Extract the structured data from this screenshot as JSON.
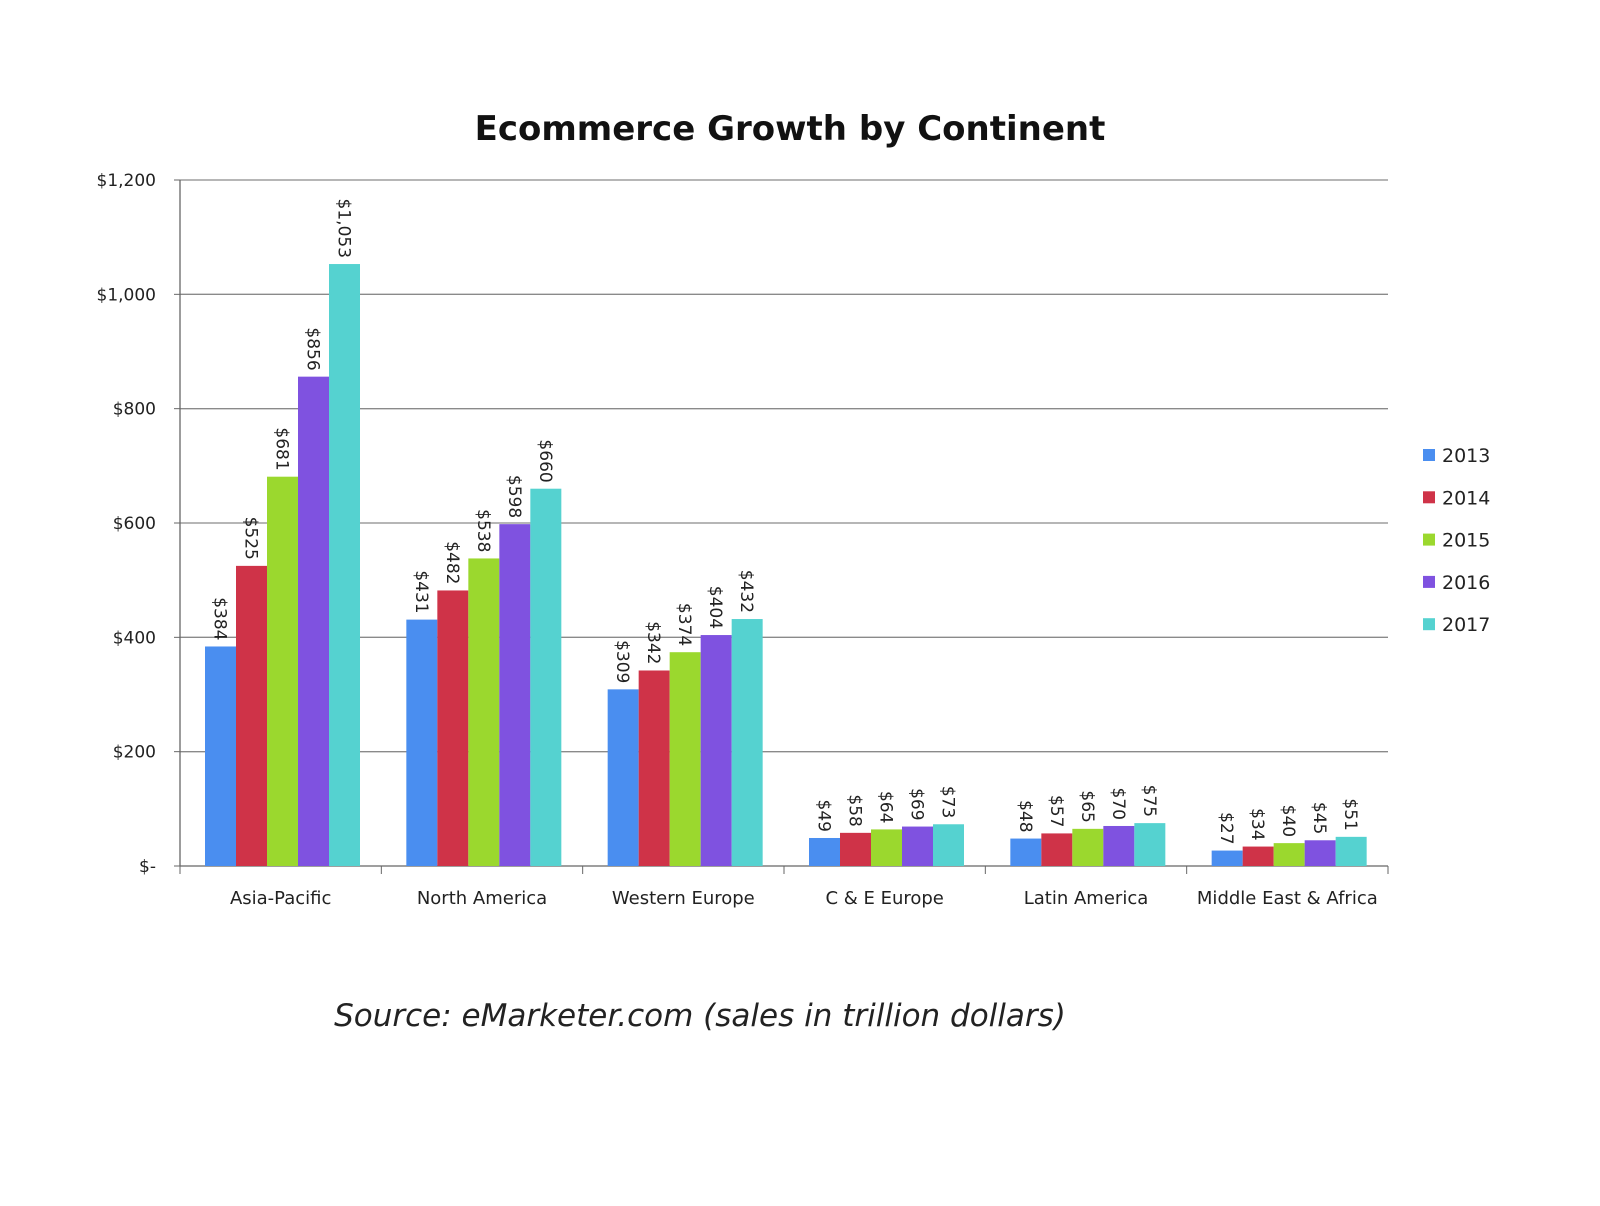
{
  "chart_data": {
    "type": "bar",
    "title": "Ecommerce Growth by Continent",
    "xlabel": "",
    "ylabel": "",
    "ylim": [
      0,
      1200
    ],
    "yticks": [
      0,
      200,
      400,
      600,
      800,
      1000,
      1200
    ],
    "ytick_labels": [
      "$-",
      "$200",
      "$400",
      "$600",
      "$800",
      "$1,000",
      "$1,200"
    ],
    "grid": true,
    "legend_position": "right",
    "categories": [
      "Asia-Pacific",
      "North America",
      "Western Europe",
      "C & E Europe",
      "Latin America",
      "Middle East & Africa"
    ],
    "series": [
      {
        "name": "2013",
        "color": "#4a8ef0",
        "values": [
          384,
          431,
          309,
          49,
          48,
          27
        ],
        "labels": [
          "$384",
          "$431",
          "$309",
          "$49",
          "$48",
          "$27"
        ]
      },
      {
        "name": "2014",
        "color": "#cf3348",
        "values": [
          525,
          482,
          342,
          58,
          57,
          34
        ],
        "labels": [
          "$525",
          "$482",
          "$342",
          "$58",
          "$57",
          "$34"
        ]
      },
      {
        "name": "2015",
        "color": "#9bd82e",
        "values": [
          681,
          538,
          374,
          64,
          65,
          40
        ],
        "labels": [
          "$681",
          "$538",
          "$374",
          "$64",
          "$65",
          "$40"
        ]
      },
      {
        "name": "2016",
        "color": "#7f52e0",
        "values": [
          856,
          598,
          404,
          69,
          70,
          45
        ],
        "labels": [
          "$856",
          "$598",
          "$404",
          "$69",
          "$70",
          "$45"
        ]
      },
      {
        "name": "2017",
        "color": "#55d2d0",
        "values": [
          1053,
          660,
          432,
          73,
          75,
          51
        ],
        "labels": [
          "$1,053",
          "$660",
          "$432",
          "$73",
          "$75",
          "$51"
        ]
      }
    ],
    "source_note": "Source: eMarketer.com (sales in trillion dollars)"
  }
}
